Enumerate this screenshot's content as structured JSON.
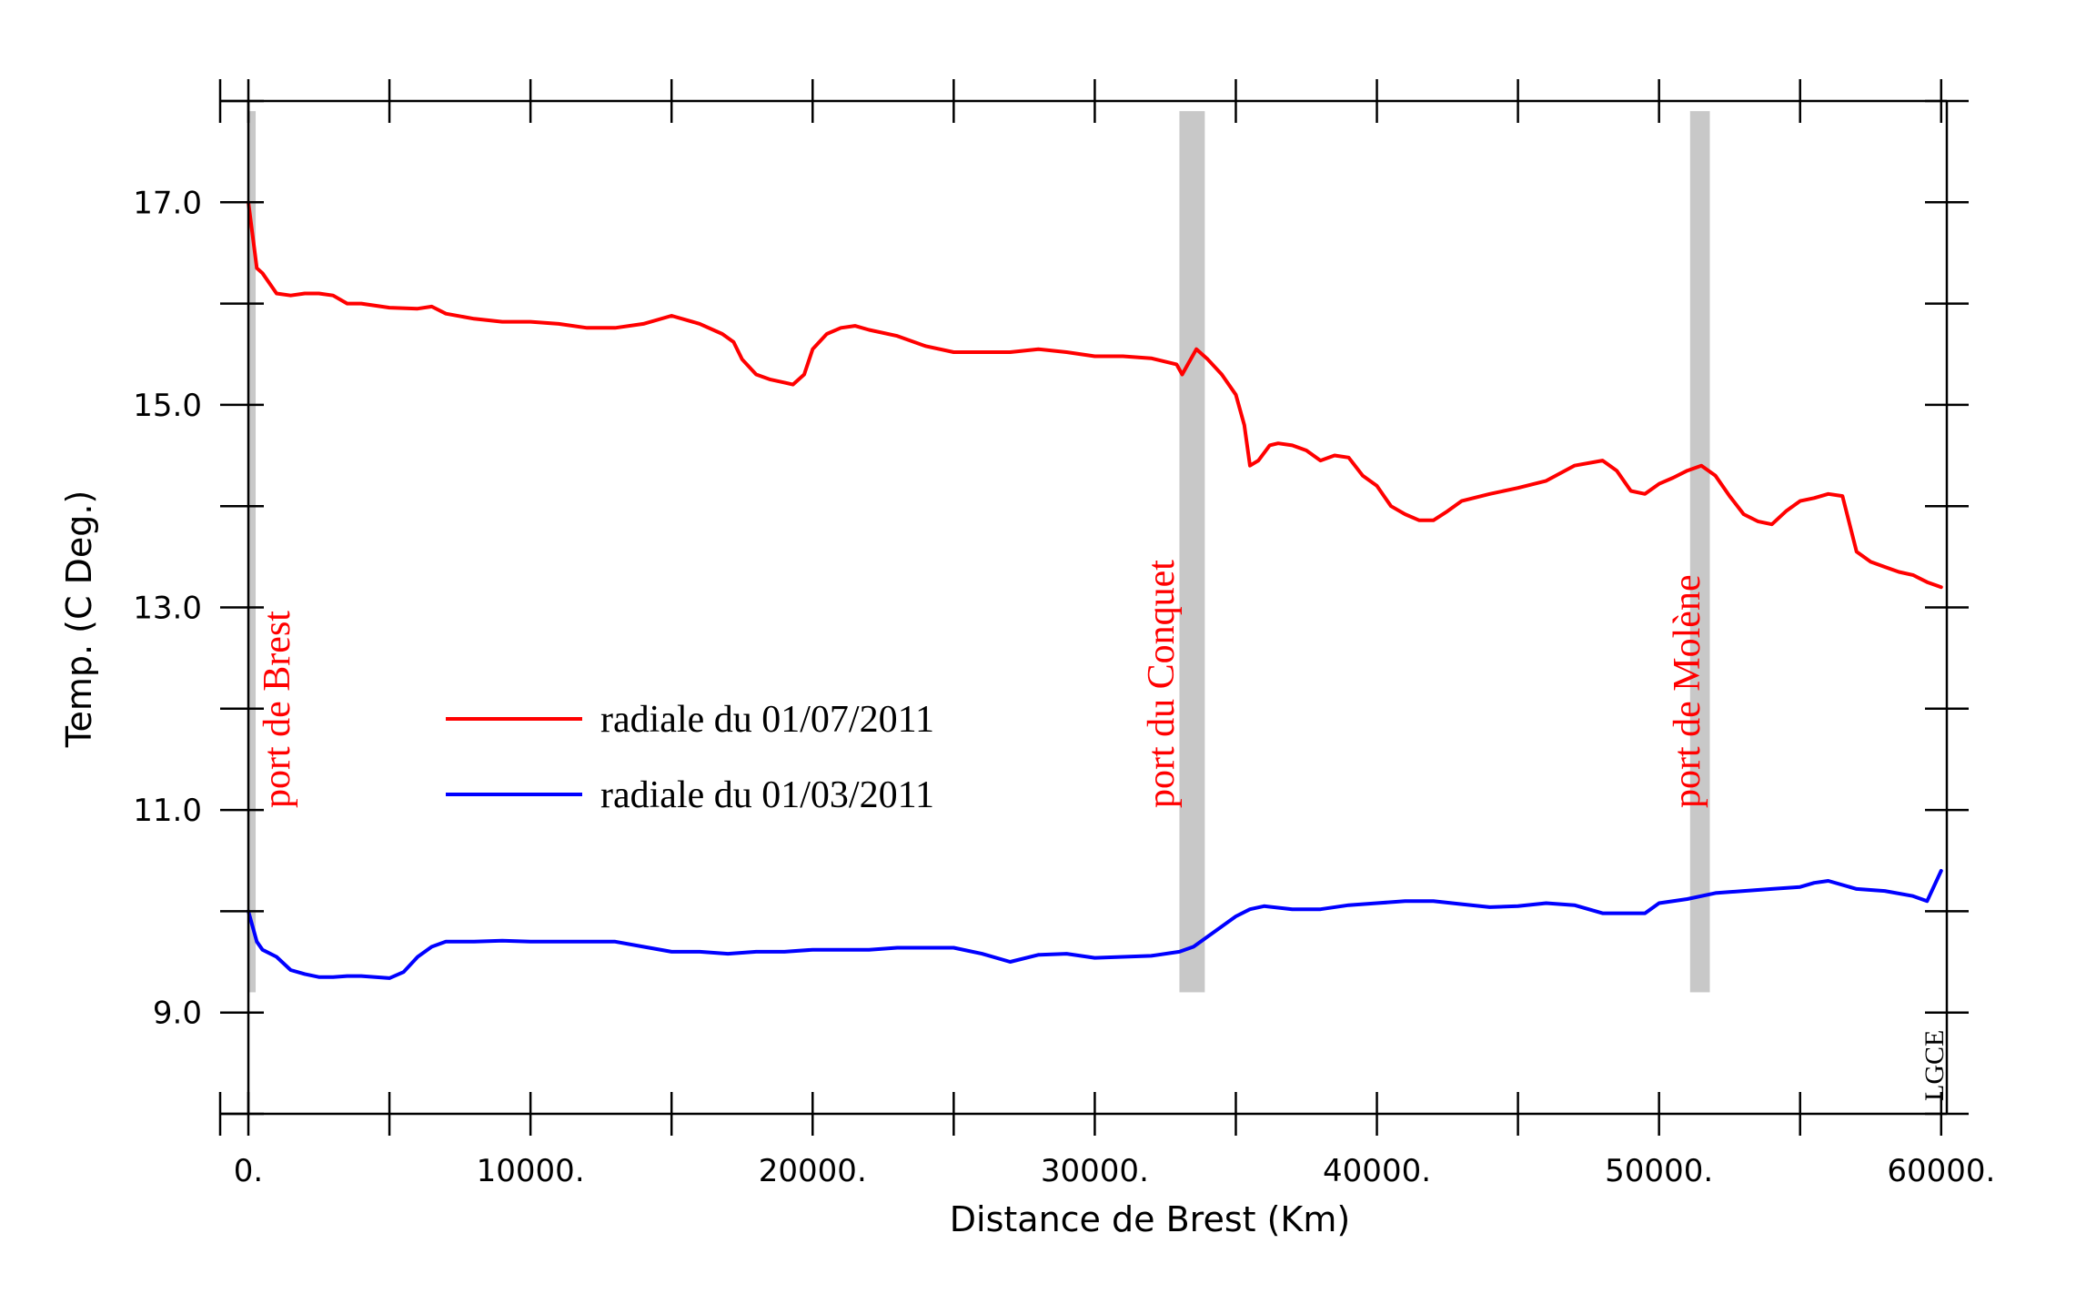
{
  "chart_data": {
    "type": "line",
    "title": "",
    "xlabel": "Distance de Brest (Km)",
    "ylabel": "Temp. (C Deg.)",
    "xlim": [
      -1000,
      60200
    ],
    "ylim": [
      8.0,
      18.0
    ],
    "x_ticks": [
      0,
      10000,
      20000,
      30000,
      40000,
      50000,
      60000
    ],
    "x_tick_labels": [
      "0.",
      "10000.",
      "20000.",
      "30000.",
      "40000.",
      "50000.",
      "60000."
    ],
    "x_minor_ticks": [
      -1000,
      5000,
      15000,
      25000,
      35000,
      45000,
      55000
    ],
    "y_ticks": [
      9.0,
      11.0,
      13.0,
      15.0,
      17.0
    ],
    "y_tick_labels": [
      "9.0",
      "11.0",
      "13.0",
      "15.0",
      "17.0"
    ],
    "y_minor_ticks": [
      8.0,
      10.0,
      12.0,
      14.0,
      16.0,
      18.0
    ],
    "grid": false,
    "legend_position": "center-left",
    "series": [
      {
        "name": "radiale du 01/07/2011",
        "color": "#ff0000",
        "x": [
          0,
          300,
          500,
          1000,
          1500,
          2000,
          2500,
          3000,
          3500,
          4000,
          5000,
          6000,
          6500,
          7000,
          8000,
          9000,
          10000,
          11000,
          12000,
          13000,
          14000,
          15000,
          16000,
          16800,
          17200,
          17500,
          18000,
          18500,
          19000,
          19300,
          19700,
          20000,
          20500,
          21000,
          21500,
          22000,
          23000,
          24000,
          25000,
          26000,
          27000,
          28000,
          29000,
          30000,
          31000,
          32000,
          32600,
          32900,
          33100,
          33300,
          33600,
          34000,
          34500,
          35000,
          35300,
          35500,
          35800,
          36200,
          36500,
          37000,
          37500,
          38000,
          38500,
          39000,
          39500,
          40000,
          40500,
          41000,
          41500,
          42000,
          42500,
          43000,
          44000,
          45000,
          46000,
          47000,
          48000,
          48500,
          49000,
          49500,
          50000,
          50500,
          51000,
          51500,
          52000,
          52500,
          53000,
          53500,
          54000,
          54500,
          55000,
          55500,
          56000,
          56500,
          57000,
          57500,
          58000,
          58500,
          59000,
          59500,
          60000
        ],
        "values": [
          17.0,
          16.35,
          16.3,
          16.1,
          16.08,
          16.1,
          16.1,
          16.08,
          16.0,
          16.0,
          15.96,
          15.95,
          15.97,
          15.9,
          15.85,
          15.82,
          15.82,
          15.8,
          15.76,
          15.76,
          15.8,
          15.88,
          15.8,
          15.7,
          15.62,
          15.45,
          15.3,
          15.25,
          15.22,
          15.2,
          15.3,
          15.55,
          15.7,
          15.76,
          15.78,
          15.74,
          15.68,
          15.58,
          15.52,
          15.52,
          15.52,
          15.55,
          15.52,
          15.48,
          15.48,
          15.46,
          15.42,
          15.4,
          15.3,
          15.4,
          15.55,
          15.45,
          15.3,
          15.1,
          14.8,
          14.4,
          14.45,
          14.6,
          14.62,
          14.6,
          14.55,
          14.45,
          14.5,
          14.48,
          14.3,
          14.2,
          14.0,
          13.92,
          13.86,
          13.86,
          13.95,
          14.05,
          14.12,
          14.18,
          14.25,
          14.4,
          14.45,
          14.35,
          14.15,
          14.12,
          14.22,
          14.28,
          14.35,
          14.4,
          14.3,
          14.1,
          13.92,
          13.85,
          13.82,
          13.95,
          14.05,
          14.08,
          14.12,
          14.1,
          13.55,
          13.45,
          13.4,
          13.35,
          13.32,
          13.25,
          13.2
        ]
      },
      {
        "name": "radiale du 01/03/2011",
        "color": "#0000ff",
        "x": [
          0,
          300,
          500,
          1000,
          1500,
          2000,
          2500,
          3000,
          3500,
          4000,
          4500,
          5000,
          5500,
          6000,
          6500,
          7000,
          8000,
          9000,
          10000,
          11000,
          12000,
          13000,
          14000,
          15000,
          16000,
          17000,
          18000,
          19000,
          20000,
          21000,
          22000,
          23000,
          24000,
          25000,
          26000,
          27000,
          28000,
          29000,
          30000,
          31000,
          32000,
          33000,
          33500,
          34000,
          34500,
          35000,
          35500,
          36000,
          37000,
          38000,
          39000,
          40000,
          41000,
          42000,
          43000,
          44000,
          45000,
          46000,
          47000,
          48000,
          49000,
          49500,
          50000,
          51000,
          52000,
          53000,
          54000,
          55000,
          55500,
          56000,
          57000,
          58000,
          59000,
          59500,
          60000
        ],
        "values": [
          10.0,
          9.7,
          9.62,
          9.55,
          9.42,
          9.38,
          9.35,
          9.35,
          9.36,
          9.36,
          9.35,
          9.34,
          9.4,
          9.55,
          9.65,
          9.7,
          9.7,
          9.71,
          9.7,
          9.7,
          9.7,
          9.7,
          9.65,
          9.6,
          9.6,
          9.58,
          9.6,
          9.6,
          9.62,
          9.62,
          9.62,
          9.64,
          9.64,
          9.64,
          9.58,
          9.5,
          9.57,
          9.58,
          9.54,
          9.55,
          9.56,
          9.6,
          9.65,
          9.75,
          9.85,
          9.95,
          10.02,
          10.05,
          10.02,
          10.02,
          10.06,
          10.08,
          10.1,
          10.1,
          10.07,
          10.04,
          10.05,
          10.08,
          10.06,
          9.98,
          9.98,
          9.98,
          10.08,
          10.12,
          10.18,
          10.2,
          10.22,
          10.24,
          10.28,
          10.3,
          10.22,
          10.2,
          10.15,
          10.1,
          10.4
        ]
      }
    ],
    "bands": [
      {
        "x0": 0,
        "x1": 250,
        "label": "port de Brest"
      },
      {
        "x0": 33000,
        "x1": 33900,
        "label": "port du Conquet"
      },
      {
        "x0": 51100,
        "x1": 51800,
        "label": "port de Molène"
      }
    ],
    "band_color": "#c8c8c8",
    "label_color": "#ff0000",
    "watermark": "LGCE"
  }
}
